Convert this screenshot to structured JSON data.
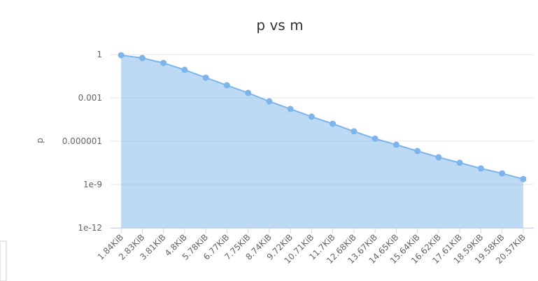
{
  "chart_data": {
    "type": "area",
    "title": "p vs m",
    "y_label": "p",
    "log_y": true,
    "grid": true,
    "color": "#7cb5ec",
    "categories": [
      "1.84KiB",
      "2.83KiB",
      "3.81KiB",
      "4.8KiB",
      "5.78KiB",
      "6.77KiB",
      "7.75KiB",
      "8.74KiB",
      "9.72KiB",
      "10.71KiB",
      "11.7KiB",
      "12.68KiB",
      "13.67KiB",
      "14.65KiB",
      "15.64KiB",
      "16.62KiB",
      "17.61KiB",
      "18.59KiB",
      "19.58KiB",
      "20.57KiB"
    ],
    "values": [
      0.9,
      0.57,
      0.26,
      0.087,
      0.025,
      0.0074,
      0.0022,
      0.00057,
      0.00017,
      5e-05,
      1.6e-05,
      4.8e-06,
      1.5e-06,
      5.7e-07,
      2.1e-07,
      7.7e-08,
      3.2e-08,
      1.3e-08,
      5.9e-09,
      2.4e-09
    ],
    "ylim": [
      1e-12,
      1
    ],
    "yticks": [
      {
        "value": 1e-12,
        "label": "1e-12"
      },
      {
        "value": 1e-09,
        "label": "1e-9"
      },
      1e-06,
      0.001,
      1
    ]
  }
}
